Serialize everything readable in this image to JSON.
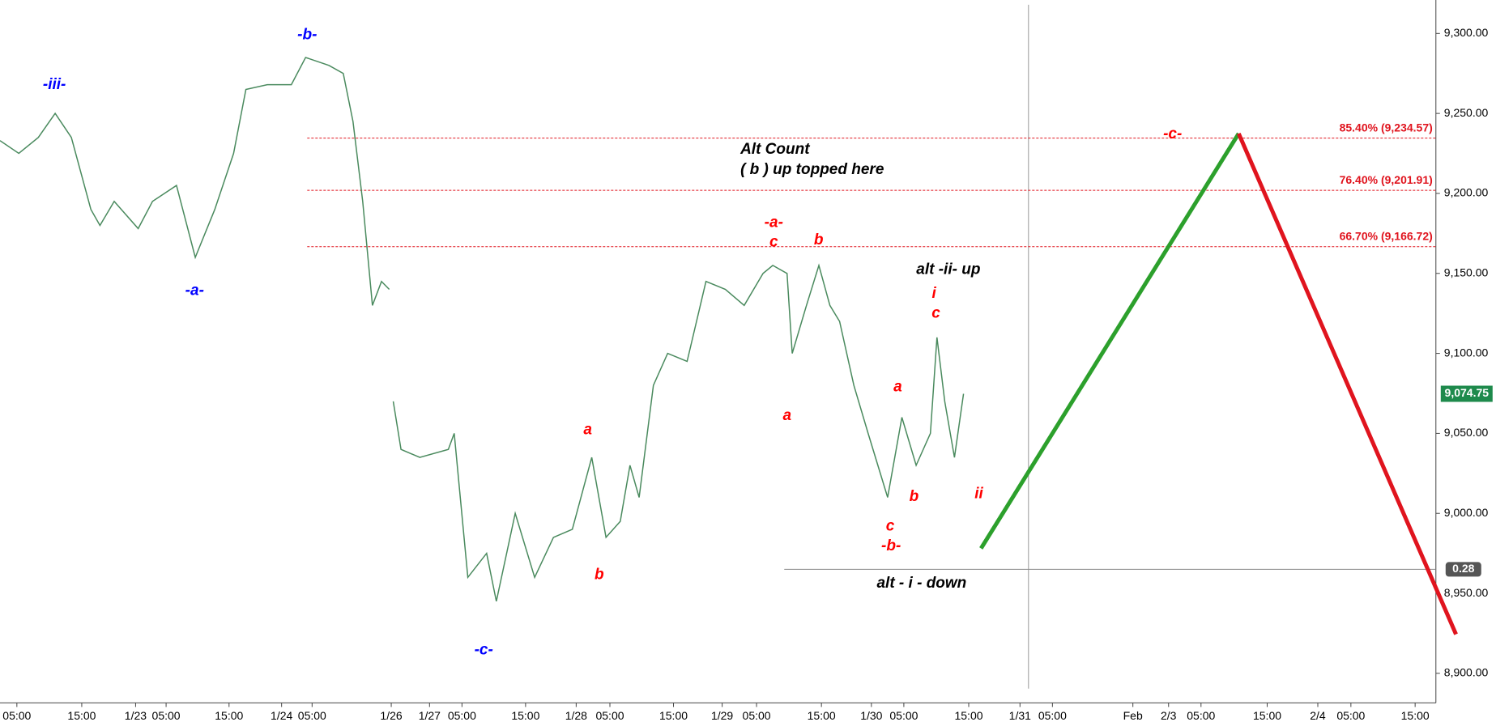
{
  "chart_data": {
    "type": "line",
    "series": [
      {
        "color": "#4a8a5e",
        "x": [
          0,
          2.9,
          5.9,
          8.5,
          11.0,
          14.0,
          15.4,
          17.6,
          21.3,
          23.5,
          27.2,
          30.1,
          33.1,
          36.0,
          37.9,
          41.2,
          44.9,
          47.1,
          50.7,
          52.9,
          54.4,
          55.9,
          57.4,
          58.8,
          60.0,
          60.3,
          60.6,
          61.8,
          64.7,
          69.1,
          70.0,
          72.1,
          75.0,
          76.5,
          79.4,
          82.4,
          85.3,
          88.2,
          91.2,
          93.4,
          95.6,
          97.1,
          98.5,
          100.7,
          102.9,
          105.9,
          108.8,
          111.8,
          114.7,
          117.6,
          119.1,
          121.3,
          122.1,
          124.3,
          126.2,
          127.9,
          129.4,
          131.6,
          133.8,
          136.8,
          139.0,
          141.2,
          143.4,
          144.4,
          145.6,
          147.1,
          148.5
        ],
        "values": [
          9233,
          9225,
          9235,
          9250,
          9235,
          9190,
          9180,
          9195,
          9178,
          9195,
          9205,
          9160,
          9190,
          9225,
          9265,
          9268,
          9268,
          9285,
          9280,
          9275,
          9245,
          9195,
          9130,
          9145,
          9140,
          null,
          9070,
          9040,
          9035,
          9040,
          9050,
          8960,
          8975,
          8945,
          9000,
          8960,
          8985,
          8990,
          9035,
          8985,
          8995,
          9030,
          9010,
          9080,
          9100,
          9095,
          9145,
          9140,
          9130,
          9150,
          9155,
          9150,
          9100,
          9130,
          9155,
          9130,
          9120,
          9080,
          9050,
          9010,
          9060,
          9030,
          9050,
          9110,
          9070,
          9035,
          9074.75
        ]
      }
    ],
    "projections": [
      {
        "color": "#2ca02c",
        "x": [
          151.2,
          190.9
        ],
        "values": [
          8978.1,
          9237.4
        ]
      },
      {
        "color": "#e0141e",
        "x": [
          190.9,
          224.4
        ],
        "values": [
          9237.4,
          8924.4
        ]
      }
    ],
    "fib_levels": [
      {
        "value": 9234.57,
        "label": "85.40% (9,234.57)"
      },
      {
        "value": 9201.91,
        "label": "76.40% (9,201.91)"
      },
      {
        "value": 9166.72,
        "label": "66.70% (9,166.72)"
      }
    ],
    "last_price": {
      "value": 9074.75,
      "label": "9,074.75"
    },
    "cursor": {
      "value": 8965,
      "label": "0.28"
    },
    "annotations": [
      {
        "text": "-iii-",
        "color": "#0000ff"
      },
      {
        "text": "-b-",
        "color": "#0000ff"
      },
      {
        "text": "-a-",
        "color": "#0000ff"
      },
      {
        "text": "-c-",
        "color": "#0000ff"
      },
      {
        "text": "a",
        "color": "#ff0000"
      },
      {
        "text": "b",
        "color": "#ff0000"
      },
      {
        "text": "-a-",
        "color": "#ff0000"
      },
      {
        "text": "c",
        "color": "#ff0000"
      },
      {
        "text": "b",
        "color": "#ff0000"
      },
      {
        "text": "a",
        "color": "#ff0000"
      },
      {
        "text": "Alt Count",
        "color": "#000000"
      },
      {
        "text": "( b ) up topped here",
        "color": "#000000"
      },
      {
        "text": "alt -ii- up",
        "color": "#000000"
      },
      {
        "text": "i",
        "color": "#ff0000"
      },
      {
        "text": "c",
        "color": "#ff0000"
      },
      {
        "text": "a",
        "color": "#ff0000"
      },
      {
        "text": "b",
        "color": "#ff0000"
      },
      {
        "text": "c",
        "color": "#ff0000"
      },
      {
        "text": "-b-",
        "color": "#ff0000"
      },
      {
        "text": "ii",
        "color": "#ff0000"
      },
      {
        "text": "alt - i - down",
        "color": "#000000"
      },
      {
        "text": "-c-",
        "color": "#ff0000"
      }
    ],
    "xlim": [
      0,
      221.3
    ],
    "xticks": [
      {
        "value": 2.6,
        "label": "05:00"
      },
      {
        "value": 12.6,
        "label": "15:00"
      },
      {
        "value": 20.9,
        "label": "1/23"
      },
      {
        "value": 25.6,
        "label": "05:00"
      },
      {
        "value": 35.3,
        "label": "15:00"
      },
      {
        "value": 43.4,
        "label": "1/24"
      },
      {
        "value": 48.1,
        "label": "05:00"
      },
      {
        "value": 60.3,
        "label": "1/26"
      },
      {
        "value": 66.2,
        "label": "1/27"
      },
      {
        "value": 71.2,
        "label": "05:00"
      },
      {
        "value": 81.0,
        "label": "15:00"
      },
      {
        "value": 88.8,
        "label": "1/28"
      },
      {
        "value": 94.0,
        "label": "05:00"
      },
      {
        "value": 103.8,
        "label": "15:00"
      },
      {
        "value": 111.3,
        "label": "1/29"
      },
      {
        "value": 116.6,
        "label": "05:00"
      },
      {
        "value": 126.6,
        "label": "15:00"
      },
      {
        "value": 134.3,
        "label": "1/30"
      },
      {
        "value": 139.3,
        "label": "05:00"
      },
      {
        "value": 149.3,
        "label": "15:00"
      },
      {
        "value": 157.2,
        "label": "1/31"
      },
      {
        "value": 162.2,
        "label": "05:00"
      },
      {
        "value": 174.6,
        "label": "Feb"
      },
      {
        "value": 180.1,
        "label": "2/3"
      },
      {
        "value": 185.1,
        "label": "05:00"
      },
      {
        "value": 195.3,
        "label": "15:00"
      },
      {
        "value": 203.1,
        "label": "2/4"
      },
      {
        "value": 208.2,
        "label": "05:00"
      },
      {
        "value": 218.1,
        "label": "15:00"
      }
    ],
    "ylim": [
      8881.5,
      9320.9
    ],
    "yticks": [
      {
        "value": 8900,
        "label": "8,900.00"
      },
      {
        "value": 8950,
        "label": "8,950.00"
      },
      {
        "value": 9000,
        "label": "9,000.00"
      },
      {
        "value": 9050,
        "label": "9,050.00"
      },
      {
        "value": 9100,
        "label": "9,100.00"
      },
      {
        "value": 9150,
        "label": "9,150.00"
      },
      {
        "value": 9200,
        "label": "9,200.00"
      },
      {
        "value": 9250,
        "label": "9,250.00"
      },
      {
        "value": 9300,
        "label": "9,300.00"
      }
    ]
  }
}
